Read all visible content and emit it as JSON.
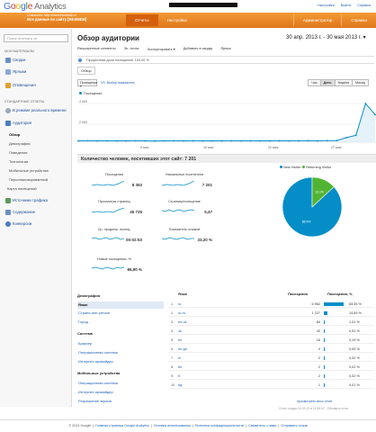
{
  "header": {
    "logo_text": "Google",
    "logo_product": "Analytics",
    "top_links": [
      "Настройки",
      "Выйти",
      "Справка"
    ],
    "property_line1": "Unstacked: http://www.thinklusk.ru",
    "property_line2": "Все данные по сайту [RESMEM]",
    "nav_tabs": [
      "Отчеты",
      "Настройка"
    ],
    "nav_right": [
      "Администратор",
      "Справка"
    ]
  },
  "sidebar": {
    "search_placeholder": "Поиск отчетов и сп",
    "sections": [
      {
        "label": "МОИ МАТЕРИАЛЫ"
      },
      {
        "label": "СТАНДАРТНЫЕ ОТЧЕТЫ"
      }
    ],
    "items_top": [
      "Сводки",
      "Ярлыки",
      "Оповещения"
    ],
    "realtime": "В режиме реального времени",
    "audience": "Аудитория",
    "audience_sub": [
      "Обзор",
      "Демография",
      "Поведение",
      "Технологии",
      "Мобильные устройства",
      "Персонализированный",
      "Карта посещений"
    ],
    "items_bottom": [
      "Источники трафика",
      "Содержание",
      "Конверсии"
    ]
  },
  "main": {
    "title": "Обзор аудитории",
    "date_range": "30 апр. 2013 г. - 30 мая 2013 г.",
    "actions": [
      "Расширенные сегменты",
      "Эл. почта",
      "Экспортировать ▾",
      "Добавить в сводку",
      "Ярлык"
    ],
    "segment_text": "Процентная доля посещений: 100,00 %",
    "tab": "Обзор",
    "metric_select": "Посещения ▾",
    "vs_link": "VS. Выбор показателя",
    "periods": [
      "Час",
      "День",
      "Неделя",
      "Месяц"
    ],
    "active_period": "День",
    "series_label": "Посещения",
    "y_ticks": [
      "4 000",
      "2 000"
    ],
    "x_ticks": [
      "8 мая",
      "15 мая",
      "22 мая",
      "27 мая"
    ],
    "count_line": "Количество человек, посетивших этот сайт: 7 201"
  },
  "metrics": [
    {
      "label": "Посещения",
      "value": "8 353"
    },
    {
      "label": "Уникальные посетители",
      "value": "7 201"
    },
    {
      "label": "Просмотры страниц",
      "value": "45 725"
    },
    {
      "label": "Страниц/посещение",
      "value": "5,47"
    },
    {
      "label": "Ср. продолж. посещ.",
      "value": "00:02:53"
    },
    {
      "label": "Показатель отказов",
      "value": "33,20 %"
    },
    {
      "label": "Новые посещения, %",
      "value": "86,90 %"
    }
  ],
  "chart_data": [
    {
      "type": "line",
      "title": "",
      "series": [
        {
          "name": "Посещения",
          "color": "#058dc7",
          "values": [
            150,
            160,
            150,
            155,
            145,
            150,
            160,
            150,
            140,
            150,
            155,
            150,
            160,
            150,
            145,
            150,
            160,
            150,
            155,
            150,
            145,
            160,
            150,
            155,
            160,
            150,
            170,
            180,
            500,
            750,
            4200,
            3000
          ]
        }
      ],
      "ylim": [
        0,
        4500
      ]
    },
    {
      "type": "pie",
      "series": [
        {
          "name": "New Visitor",
          "value": 86.9,
          "color": "#058dc7"
        },
        {
          "name": "Returning Visitor",
          "value": 13.1,
          "color": "#50b432"
        }
      ],
      "slice_labels": [
        "86.9%",
        "13.1%"
      ]
    }
  ],
  "left_list": {
    "groups": [
      {
        "heading": "Демография",
        "items": [
          "Язык",
          "Страна или регион",
          "Город"
        ]
      },
      {
        "heading": "Система",
        "items": [
          "Браузер",
          "Операционная система",
          "Интернет-провайдер"
        ]
      },
      {
        "heading": "Мобильные устройства",
        "items": [
          "Операционная система",
          "Интернет-провайдер",
          "Разрешение экрана"
        ]
      }
    ],
    "selected": "Язык"
  },
  "table": {
    "headers": [
      "Язык",
      "Посещения",
      "Посещения, %"
    ],
    "rows": [
      {
        "n": "1.",
        "lang": "ru",
        "visits": "6 962",
        "pct": "83,35 %",
        "frac": 0.8335
      },
      {
        "n": "2.",
        "lang": "ru-ru",
        "visits": "1 227",
        "pct": "14,69 %",
        "frac": 0.1469
      },
      {
        "n": "3.",
        "lang": "en-us",
        "visits": "84",
        "pct": "1,01 %",
        "frac": 0.0101
      },
      {
        "n": "4.",
        "lang": "uk",
        "visits": "43",
        "pct": "0,51 %",
        "frac": 0.0051
      },
      {
        "n": "5.",
        "lang": "en",
        "visits": "16",
        "pct": "0,19 %",
        "frac": 0.0019
      },
      {
        "n": "6.",
        "lang": "en-gb",
        "visits": "4",
        "pct": "0,05 %",
        "frac": 0.0005
      },
      {
        "n": "7.",
        "lang": "el",
        "visits": "2",
        "pct": "0,02 %",
        "frac": 0.0002
      },
      {
        "n": "8.",
        "lang": "be",
        "visits": "2",
        "pct": "0,02 %",
        "frac": 0.0002
      },
      {
        "n": "9.",
        "lang": "fr",
        "visits": "2",
        "pct": "0,02 %",
        "frac": 0.0002
      },
      {
        "n": "10.",
        "lang": "bg",
        "visits": "1",
        "pct": "0,01 %",
        "frac": 0.0001
      }
    ],
    "nav": "просмотреть весь отчет",
    "generated": "Отчет создан 31.05.13 в 14:08:02 - Обновить отчет"
  },
  "footer": {
    "items": [
      "© 2013 Google",
      "Главная страница Google Analytics",
      "Условия использования",
      "Политика конфиденциальности",
      "Свяжитесь с нами",
      "Отправить отзыв"
    ]
  }
}
